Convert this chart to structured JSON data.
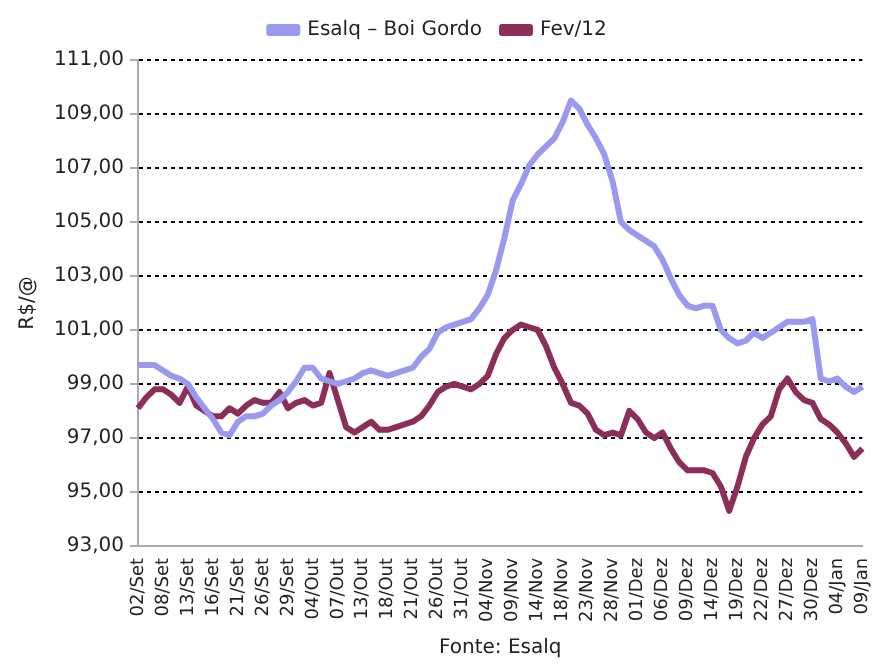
{
  "chart_data": {
    "type": "line",
    "ylabel": "R$/@",
    "categories": [
      "02/Set",
      null,
      null,
      "08/Set",
      null,
      null,
      "13/Set",
      null,
      null,
      "16/Set",
      null,
      null,
      "21/Set",
      null,
      null,
      "26/Set",
      null,
      null,
      "29/Set",
      null,
      null,
      "04/Out",
      null,
      null,
      "07/Out",
      null,
      null,
      "13/Out",
      null,
      null,
      "18/Out",
      null,
      null,
      "21/Out",
      null,
      null,
      "26/Out",
      null,
      null,
      "31/Out",
      null,
      null,
      "04/Nov",
      null,
      null,
      "09/Nov",
      null,
      null,
      "14/Nov",
      null,
      null,
      "18/Nov",
      null,
      null,
      "23/Nov",
      null,
      null,
      "28/Nov",
      null,
      null,
      "01/Dez",
      null,
      null,
      "06/Dez",
      null,
      null,
      "09/Dez",
      null,
      null,
      "14/Dez",
      null,
      null,
      "19/Dez",
      null,
      null,
      "22/Dez",
      null,
      null,
      "27/Dez",
      null,
      null,
      "30/Dez",
      null,
      null,
      "04/Jan",
      null,
      null,
      "09/Jan"
    ],
    "series": [
      {
        "name": "Esalq – Boi Gordo",
        "color": "#9999ee",
        "values": [
          99.7,
          99.7,
          99.7,
          99.5,
          99.3,
          99.2,
          99.0,
          98.5,
          98.1,
          97.7,
          97.2,
          97.1,
          97.6,
          97.8,
          97.8,
          97.9,
          98.2,
          98.4,
          98.7,
          99.1,
          99.6,
          99.6,
          99.2,
          99.1,
          99.0,
          99.1,
          99.2,
          99.4,
          99.5,
          99.4,
          99.3,
          99.4,
          99.5,
          99.6,
          100.0,
          100.3,
          100.9,
          101.1,
          101.2,
          101.3,
          101.4,
          101.8,
          102.3,
          103.2,
          104.4,
          105.8,
          106.4,
          107.1,
          107.5,
          107.8,
          108.1,
          108.7,
          109.5,
          109.2,
          108.6,
          108.1,
          107.5,
          106.5,
          105.0,
          104.7,
          104.5,
          104.3,
          104.1,
          103.6,
          102.9,
          102.3,
          101.9,
          101.8,
          101.9,
          101.9,
          101.0,
          100.7,
          100.5,
          100.6,
          100.9,
          100.7,
          100.9,
          101.1,
          101.3,
          101.3,
          101.3,
          101.4,
          99.2,
          99.1,
          99.2,
          98.9,
          98.7,
          98.9
        ]
      },
      {
        "name": "Fev/12",
        "color": "#8b2f5a",
        "values": [
          98.1,
          98.5,
          98.8,
          98.8,
          98.6,
          98.3,
          98.9,
          98.2,
          98.0,
          97.8,
          97.8,
          98.1,
          97.9,
          98.2,
          98.4,
          98.3,
          98.3,
          98.7,
          98.1,
          98.3,
          98.4,
          98.2,
          98.3,
          99.4,
          98.4,
          97.4,
          97.2,
          97.4,
          97.6,
          97.3,
          97.3,
          97.4,
          97.5,
          97.6,
          97.8,
          98.2,
          98.7,
          98.9,
          99.0,
          98.9,
          98.8,
          99.0,
          99.3,
          100.1,
          100.7,
          101.0,
          101.2,
          101.1,
          101.0,
          100.4,
          99.6,
          99.0,
          98.3,
          98.2,
          97.9,
          97.3,
          97.1,
          97.2,
          97.1,
          98.0,
          97.7,
          97.2,
          97.0,
          97.2,
          96.6,
          96.1,
          95.8,
          95.8,
          95.8,
          95.7,
          95.2,
          94.3,
          95.2,
          96.3,
          97.0,
          97.5,
          97.8,
          98.8,
          99.2,
          98.7,
          98.4,
          98.3,
          97.7,
          97.5,
          97.2,
          96.8,
          96.3,
          96.6
        ]
      }
    ],
    "ylim": [
      93,
      111
    ],
    "yticks": [
      {
        "value": 93,
        "label": "93,00"
      },
      {
        "value": 95,
        "label": "95,00"
      },
      {
        "value": 97,
        "label": "97,00"
      },
      {
        "value": 99,
        "label": "99,00"
      },
      {
        "value": 101,
        "label": "101,00"
      },
      {
        "value": 103,
        "label": "103,00"
      },
      {
        "value": 105,
        "label": "105,00"
      },
      {
        "value": 107,
        "label": "107,00"
      },
      {
        "value": 109,
        "label": "109,00"
      },
      {
        "value": 111,
        "label": "111,00"
      }
    ],
    "grid": "y",
    "legend": "top",
    "marker": "none",
    "line_style": "solid",
    "annotations": [
      "Fonte: Esalq"
    ]
  }
}
